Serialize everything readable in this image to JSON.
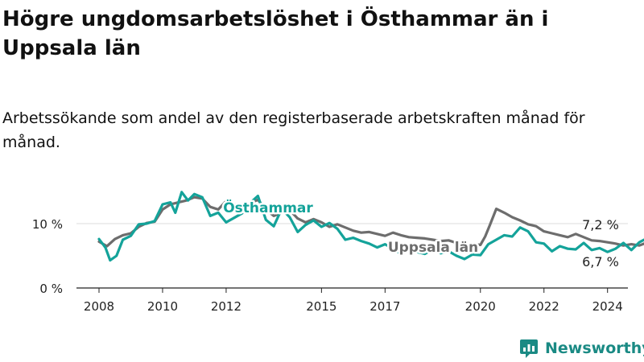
{
  "title": "Högre ungdomsarbetslöshet i Östhammar än i Uppsala län",
  "subtitle": "Arbetssökande som andel av den registerbaserade arbetskraften månad för månad.",
  "brand": "Newsworthy",
  "colors": {
    "osthammar": "#14a39a",
    "uppsala": "#6d6d6d",
    "text": "#222222",
    "grid": "#dddddd"
  },
  "chart_data": {
    "type": "line",
    "xlim": [
      2008,
      2025.35
    ],
    "ylim": [
      0,
      15
    ],
    "y_ticks": [
      {
        "value": 0,
        "label": "0 %"
      },
      {
        "value": 10,
        "label": "10 %"
      }
    ],
    "x_ticks": [
      {
        "value": 2008,
        "label": "2008"
      },
      {
        "value": 2010,
        "label": "2010"
      },
      {
        "value": 2012,
        "label": "2012"
      },
      {
        "value": 2015,
        "label": "2015"
      },
      {
        "value": 2017,
        "label": "2017"
      },
      {
        "value": 2020,
        "label": "2020"
      },
      {
        "value": 2022,
        "label": "2022"
      },
      {
        "value": 2024,
        "label": "2024"
      }
    ],
    "grid": "horizontal",
    "series": [
      {
        "name": "Uppsala län",
        "color": "#6d6d6d",
        "end_label": "6,7 %",
        "points": [
          [
            2008.0,
            7.2
          ],
          [
            2008.25,
            6.5
          ],
          [
            2008.5,
            7.6
          ],
          [
            2008.75,
            8.2
          ],
          [
            2009.0,
            8.5
          ],
          [
            2009.25,
            9.5
          ],
          [
            2009.5,
            10.1
          ],
          [
            2009.75,
            10.3
          ],
          [
            2010.0,
            12.2
          ],
          [
            2010.25,
            13.0
          ],
          [
            2010.5,
            13.3
          ],
          [
            2010.75,
            13.6
          ],
          [
            2011.0,
            14.1
          ],
          [
            2011.25,
            13.9
          ],
          [
            2011.5,
            12.6
          ],
          [
            2011.75,
            12.2
          ],
          [
            2012.0,
            13.5
          ],
          [
            2012.25,
            13.0
          ],
          [
            2012.5,
            12.4
          ],
          [
            2012.75,
            13.2
          ],
          [
            2013.0,
            13.7
          ],
          [
            2013.25,
            12.2
          ],
          [
            2013.5,
            11.2
          ],
          [
            2013.75,
            11.7
          ],
          [
            2014.0,
            12.1
          ],
          [
            2014.25,
            10.8
          ],
          [
            2014.5,
            10.2
          ],
          [
            2014.75,
            10.7
          ],
          [
            2015.0,
            10.2
          ],
          [
            2015.25,
            9.5
          ],
          [
            2015.5,
            9.9
          ],
          [
            2015.75,
            9.4
          ],
          [
            2016.0,
            8.9
          ],
          [
            2016.25,
            8.6
          ],
          [
            2016.5,
            8.7
          ],
          [
            2016.75,
            8.4
          ],
          [
            2017.0,
            8.1
          ],
          [
            2017.25,
            8.6
          ],
          [
            2017.5,
            8.2
          ],
          [
            2017.75,
            7.9
          ],
          [
            2018.0,
            7.8
          ],
          [
            2018.25,
            7.7
          ],
          [
            2018.5,
            7.5
          ],
          [
            2018.75,
            7.3
          ],
          [
            2019.0,
            7.4
          ],
          [
            2019.25,
            7.0
          ],
          [
            2019.5,
            6.8
          ],
          [
            2019.75,
            6.8
          ],
          [
            2020.0,
            6.7
          ],
          [
            2020.15,
            8.0
          ],
          [
            2020.3,
            9.8
          ],
          [
            2020.5,
            12.3
          ],
          [
            2020.75,
            11.7
          ],
          [
            2021.0,
            11.0
          ],
          [
            2021.25,
            10.5
          ],
          [
            2021.5,
            9.9
          ],
          [
            2021.75,
            9.6
          ],
          [
            2022.0,
            8.8
          ],
          [
            2022.25,
            8.5
          ],
          [
            2022.5,
            8.2
          ],
          [
            2022.75,
            7.9
          ],
          [
            2023.0,
            8.4
          ],
          [
            2023.25,
            7.9
          ],
          [
            2023.5,
            7.4
          ],
          [
            2023.75,
            7.3
          ],
          [
            2024.0,
            7.1
          ],
          [
            2024.25,
            6.9
          ],
          [
            2024.5,
            6.6
          ],
          [
            2024.75,
            6.8
          ],
          [
            2025.0,
            6.6
          ],
          [
            2025.15,
            6.9
          ],
          [
            2025.3,
            6.7
          ]
        ]
      },
      {
        "name": "Östhammar",
        "color": "#14a39a",
        "end_label": "7,2 %",
        "points": [
          [
            2008.0,
            7.6
          ],
          [
            2008.2,
            6.3
          ],
          [
            2008.35,
            4.3
          ],
          [
            2008.55,
            5.0
          ],
          [
            2008.75,
            7.5
          ],
          [
            2009.0,
            8.1
          ],
          [
            2009.25,
            9.9
          ],
          [
            2009.5,
            10.0
          ],
          [
            2009.75,
            10.4
          ],
          [
            2010.0,
            13.0
          ],
          [
            2010.25,
            13.3
          ],
          [
            2010.4,
            11.7
          ],
          [
            2010.6,
            14.9
          ],
          [
            2010.8,
            13.6
          ],
          [
            2011.0,
            14.6
          ],
          [
            2011.25,
            14.1
          ],
          [
            2011.5,
            11.2
          ],
          [
            2011.75,
            11.7
          ],
          [
            2012.0,
            10.2
          ],
          [
            2012.25,
            10.9
          ],
          [
            2012.5,
            11.6
          ],
          [
            2012.75,
            13.2
          ],
          [
            2013.0,
            14.3
          ],
          [
            2013.25,
            10.6
          ],
          [
            2013.5,
            9.6
          ],
          [
            2013.75,
            12.3
          ],
          [
            2014.0,
            11.0
          ],
          [
            2014.25,
            8.7
          ],
          [
            2014.5,
            9.8
          ],
          [
            2014.75,
            10.5
          ],
          [
            2015.0,
            9.5
          ],
          [
            2015.25,
            10.1
          ],
          [
            2015.5,
            9.2
          ],
          [
            2015.75,
            7.5
          ],
          [
            2016.0,
            7.8
          ],
          [
            2016.25,
            7.3
          ],
          [
            2016.5,
            6.9
          ],
          [
            2016.75,
            6.3
          ],
          [
            2017.0,
            6.8
          ],
          [
            2017.25,
            6.1
          ],
          [
            2017.5,
            5.3
          ],
          [
            2017.75,
            5.9
          ],
          [
            2018.0,
            5.6
          ],
          [
            2018.25,
            5.3
          ],
          [
            2018.5,
            6.0
          ],
          [
            2018.75,
            5.4
          ],
          [
            2019.0,
            5.7
          ],
          [
            2019.25,
            5.0
          ],
          [
            2019.5,
            4.5
          ],
          [
            2019.75,
            5.2
          ],
          [
            2020.0,
            5.1
          ],
          [
            2020.25,
            6.8
          ],
          [
            2020.5,
            7.5
          ],
          [
            2020.75,
            8.2
          ],
          [
            2021.0,
            8.0
          ],
          [
            2021.25,
            9.4
          ],
          [
            2021.5,
            8.8
          ],
          [
            2021.75,
            7.1
          ],
          [
            2022.0,
            6.9
          ],
          [
            2022.25,
            5.7
          ],
          [
            2022.5,
            6.5
          ],
          [
            2022.75,
            6.1
          ],
          [
            2023.0,
            6.0
          ],
          [
            2023.25,
            7.0
          ],
          [
            2023.5,
            5.9
          ],
          [
            2023.75,
            6.2
          ],
          [
            2024.0,
            5.6
          ],
          [
            2024.25,
            6.1
          ],
          [
            2024.5,
            7.0
          ],
          [
            2024.75,
            5.9
          ],
          [
            2025.0,
            7.1
          ],
          [
            2025.15,
            7.5
          ],
          [
            2025.3,
            7.2
          ]
        ]
      }
    ],
    "annotations": [
      {
        "text": "Östhammar",
        "series": "Östhammar"
      },
      {
        "text": "Uppsala län",
        "series": "Uppsala län"
      }
    ]
  }
}
